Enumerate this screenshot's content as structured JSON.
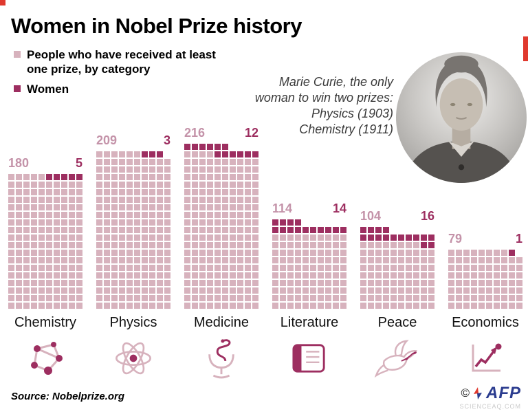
{
  "header": {
    "title": "Women in Nobel Prize history"
  },
  "legend": {
    "items": [
      {
        "label": "People who have received at least one prize, by category",
        "color": "#d7b2bd"
      },
      {
        "label": "Women",
        "color": "#9d2e60"
      }
    ]
  },
  "annotation": {
    "lines": [
      "Marie Curie, the only",
      "woman to win two prizes:",
      "Physics (1903)",
      "Chemistry (1911)"
    ]
  },
  "footer": {
    "source": "Source: Nobelprize.org",
    "copyright": "©",
    "logo": "AFP",
    "watermark": "SCIENCEAQ.COM"
  },
  "colors": {
    "light_squares": "#d7b2bd",
    "women": "#9d2e60",
    "accent_red": "#e0392e",
    "afp_blue": "#2b3c8f"
  },
  "chart_data": {
    "type": "waffle",
    "title": "Women in Nobel Prize history",
    "categories": [
      "Chemistry",
      "Physics",
      "Medicine",
      "Literature",
      "Peace",
      "Economics"
    ],
    "series": [
      {
        "name": "People who have received at least one prize, by category",
        "values": [
          180,
          209,
          216,
          114,
          104,
          79
        ]
      },
      {
        "name": "Women",
        "values": [
          5,
          3,
          12,
          14,
          16,
          1
        ]
      }
    ],
    "columns": 10,
    "legend_position": "top-left",
    "grid": false,
    "category_icons": [
      "molecule-icon",
      "atom-icon",
      "pharmacy-icon",
      "book-icon",
      "dove-icon",
      "chart-icon"
    ]
  }
}
